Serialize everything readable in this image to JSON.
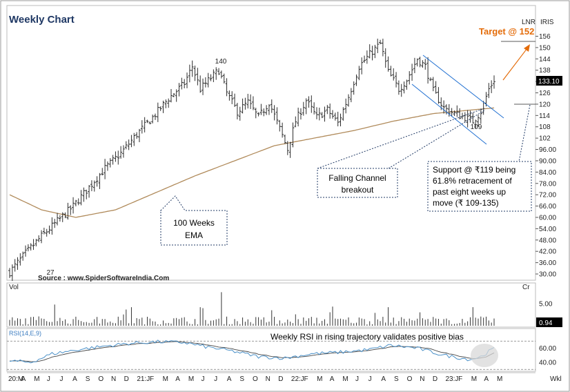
{
  "header": {
    "title": "Weekly Chart",
    "symbol": "LNR",
    "symbol2": "IRIS"
  },
  "annotations": {
    "target": "Target @  152",
    "source": "Source : www.SpiderSoftwareIndia.Com",
    "label_140": "140",
    "label_27": "27",
    "label_109": "109",
    "falling_channel": [
      "Falling Channel",
      "breakout"
    ],
    "ema_box": [
      "100 Weeks",
      "EMA"
    ],
    "support_box": [
      "Support @ ₹119 being",
      "61.8%  retracement  of",
      "past  eight  weeks  up",
      "move (₹ 109-135)"
    ],
    "rsi_note": "Weekly RSI in rising trajectory validates positive bias",
    "last_price": "133.10",
    "last_volume": "0.94"
  },
  "panels": {
    "volume_label": "Vol",
    "volume_unit": "Cr",
    "rsi_label": "RSI(14,E,9)",
    "timeframe": "Wkl"
  },
  "colors": {
    "price_bar": "#2b2b2b",
    "ema": "#b08a5a",
    "channel": "#1f6fd1",
    "target_arrow": "#e46c0a",
    "rsi": "#4a90c8",
    "rsi_signal": "#444444",
    "header": "#1f3864"
  },
  "chart_data": {
    "type": "bar",
    "price_axis": {
      "ticks": [
        156,
        150,
        144,
        138,
        132,
        126,
        120,
        114,
        108,
        102,
        96,
        90,
        84,
        78,
        72,
        66,
        60,
        54,
        48,
        42,
        36,
        30
      ],
      "tick_labels": [
        "156",
        "150",
        "144",
        "138",
        "",
        "126",
        "120",
        "114",
        "108",
        "102",
        "96.00",
        "90.00",
        "84.00",
        "78.00",
        "72.00",
        "66.00",
        "60.00",
        "54.00",
        "48.00",
        "42.00",
        "36.00",
        "30.00"
      ]
    },
    "volume_axis": {
      "ticks": [
        5
      ],
      "tick_labels": [
        "5.00"
      ]
    },
    "rsi_axis": {
      "ticks": [
        60,
        40
      ],
      "tick_labels": [
        "60.00",
        "40.00"
      ]
    },
    "x_labels": [
      "20:M",
      "A",
      "M",
      "J",
      "J",
      "A",
      "S",
      "O",
      "N",
      "D",
      "21:J",
      "F",
      "M",
      "A",
      "M",
      "J",
      "J",
      "A",
      "S",
      "O",
      "N",
      "D",
      "22:J",
      "F",
      "M",
      "A",
      "M",
      "J",
      "J",
      "A",
      "S",
      "O",
      "N",
      "D",
      "23:J",
      "F",
      "M",
      "A",
      "M"
    ],
    "price_anchors": [
      [
        0,
        31
      ],
      [
        6,
        41
      ],
      [
        12,
        50
      ],
      [
        18,
        58
      ],
      [
        24,
        66
      ],
      [
        30,
        76
      ],
      [
        36,
        86
      ],
      [
        42,
        94
      ],
      [
        48,
        104
      ],
      [
        54,
        113
      ],
      [
        60,
        123
      ],
      [
        66,
        131
      ],
      [
        69,
        140
      ],
      [
        72,
        128
      ],
      [
        76,
        134
      ],
      [
        79,
        138
      ],
      [
        82,
        126
      ],
      [
        86,
        116
      ],
      [
        90,
        121
      ],
      [
        94,
        113
      ],
      [
        98,
        121
      ],
      [
        102,
        107
      ],
      [
        105,
        96
      ],
      [
        108,
        111
      ],
      [
        112,
        122
      ],
      [
        116,
        113
      ],
      [
        120,
        117
      ],
      [
        124,
        110
      ],
      [
        128,
        124
      ],
      [
        132,
        140
      ],
      [
        137,
        148
      ],
      [
        140,
        152
      ],
      [
        143,
        137
      ],
      [
        147,
        128
      ],
      [
        150,
        133
      ],
      [
        154,
        144
      ],
      [
        157,
        140
      ],
      [
        160,
        127
      ],
      [
        164,
        118
      ],
      [
        168,
        115
      ],
      [
        172,
        113
      ],
      [
        175,
        111
      ],
      [
        178,
        116
      ],
      [
        181,
        128
      ],
      [
        183,
        133
      ]
    ],
    "ema_anchors": [
      [
        0,
        72
      ],
      [
        12,
        64
      ],
      [
        25,
        60
      ],
      [
        40,
        64
      ],
      [
        55,
        73
      ],
      [
        70,
        82
      ],
      [
        85,
        90
      ],
      [
        100,
        98
      ],
      [
        115,
        102
      ],
      [
        130,
        106
      ],
      [
        145,
        111
      ],
      [
        160,
        115
      ],
      [
        175,
        117
      ],
      [
        183,
        118
      ]
    ],
    "rsi_anchors": [
      [
        0,
        42
      ],
      [
        8,
        40
      ],
      [
        16,
        52
      ],
      [
        26,
        58
      ],
      [
        36,
        63
      ],
      [
        46,
        67
      ],
      [
        56,
        69
      ],
      [
        66,
        68
      ],
      [
        74,
        62
      ],
      [
        84,
        56
      ],
      [
        94,
        48
      ],
      [
        104,
        46
      ],
      [
        114,
        52
      ],
      [
        124,
        54
      ],
      [
        136,
        58
      ],
      [
        144,
        64
      ],
      [
        154,
        60
      ],
      [
        164,
        50
      ],
      [
        174,
        44
      ],
      [
        178,
        48
      ],
      [
        183,
        60
      ]
    ]
  }
}
